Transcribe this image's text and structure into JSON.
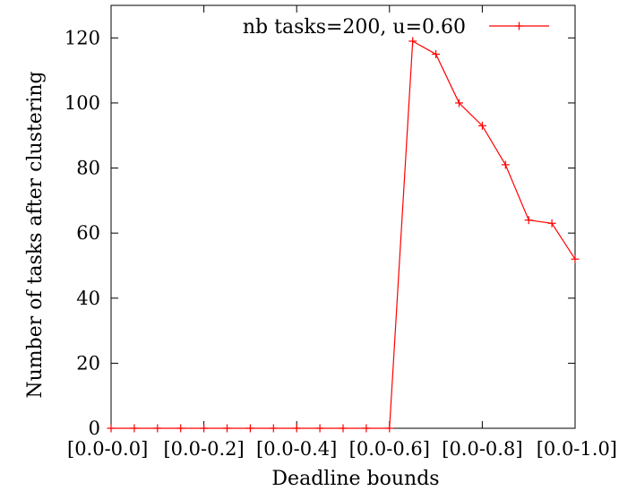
{
  "chart_data": {
    "type": "line",
    "xlabel": "Deadline bounds",
    "ylabel": "Number of tasks after clustering",
    "xlim": [
      0,
      1
    ],
    "ylim": [
      0,
      130
    ],
    "x_tick_positions": [
      0.0,
      0.2,
      0.4,
      0.6,
      0.8,
      1.0
    ],
    "x_tick_labels": [
      "[0.0-0.0]",
      "[0.0-0.2]",
      "[0.0-0.4]",
      "[0.0-0.6]",
      "[0.0-0.8]",
      "[0.0-1.0]"
    ],
    "y_ticks": [
      0,
      20,
      40,
      60,
      80,
      100,
      120
    ],
    "grid": false,
    "legend_position": "top-right",
    "series": [
      {
        "name": "nb tasks=200, u=0.60",
        "color": "#ff0000",
        "marker": "plus",
        "x": [
          0.0,
          0.05,
          0.1,
          0.15,
          0.2,
          0.25,
          0.3,
          0.35,
          0.4,
          0.45,
          0.5,
          0.55,
          0.6,
          0.65,
          0.7,
          0.75,
          0.8,
          0.85,
          0.9,
          0.95,
          1.0
        ],
        "y": [
          0,
          0,
          0,
          0,
          0,
          0,
          0,
          0,
          0,
          0,
          0,
          0,
          0,
          119,
          115,
          100,
          93,
          81,
          64,
          63,
          52
        ]
      }
    ]
  }
}
